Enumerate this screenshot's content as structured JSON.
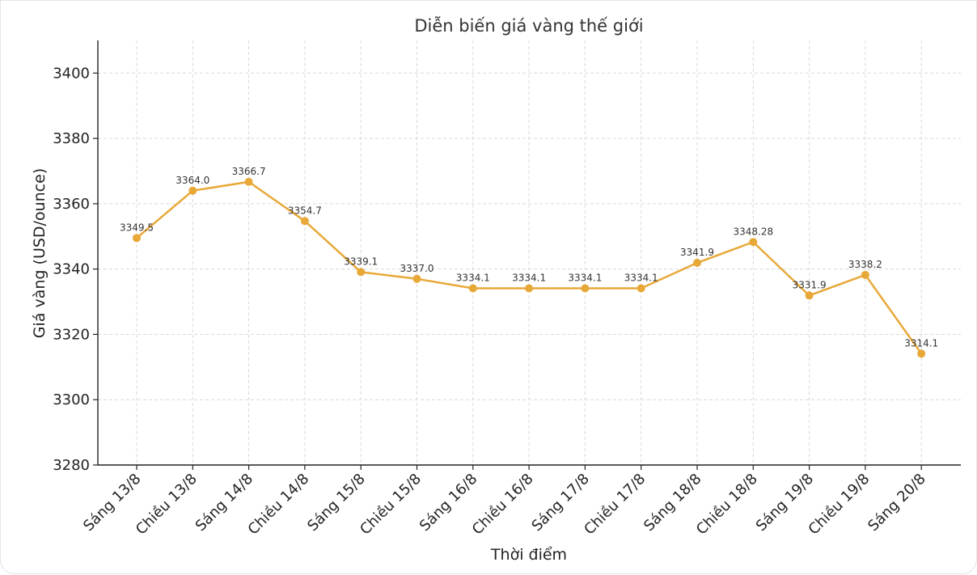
{
  "chart_data": {
    "type": "line",
    "title": "Diễn biến giá vàng thế giới",
    "xlabel": "Thời điểm",
    "ylabel": "Giá vàng (USD/ounce)",
    "ylim": [
      3280,
      3410
    ],
    "yticks": [
      3280,
      3300,
      3320,
      3340,
      3360,
      3380,
      3400
    ],
    "grid": true,
    "color": "#e8a838",
    "categories": [
      "Sáng 13/8",
      "Chiều 13/8",
      "Sáng 14/8",
      "Chiều 14/8",
      "Sáng 15/8",
      "Chiều 15/8",
      "Sáng 16/8",
      "Chiều 16/8",
      "Sáng 17/8",
      "Chiều 17/8",
      "Sáng 18/8",
      "Chiều 18/8",
      "Sáng 19/8",
      "Chiều 19/8",
      "Sáng 20/8"
    ],
    "values": [
      3349.5,
      3364.0,
      3366.7,
      3354.7,
      3339.1,
      3337.0,
      3334.1,
      3334.1,
      3334.1,
      3334.1,
      3341.9,
      3348.28,
      3331.9,
      3338.2,
      3314.1
    ],
    "data_labels": [
      "3349.5",
      "3364.0",
      "3366.7",
      "3354.7",
      "3339.1",
      "3337.0",
      "3334.1",
      "3334.1",
      "3334.1",
      "3334.1",
      "3341.9",
      "3348.28",
      "3331.9",
      "3338.2",
      "3314.1"
    ]
  }
}
